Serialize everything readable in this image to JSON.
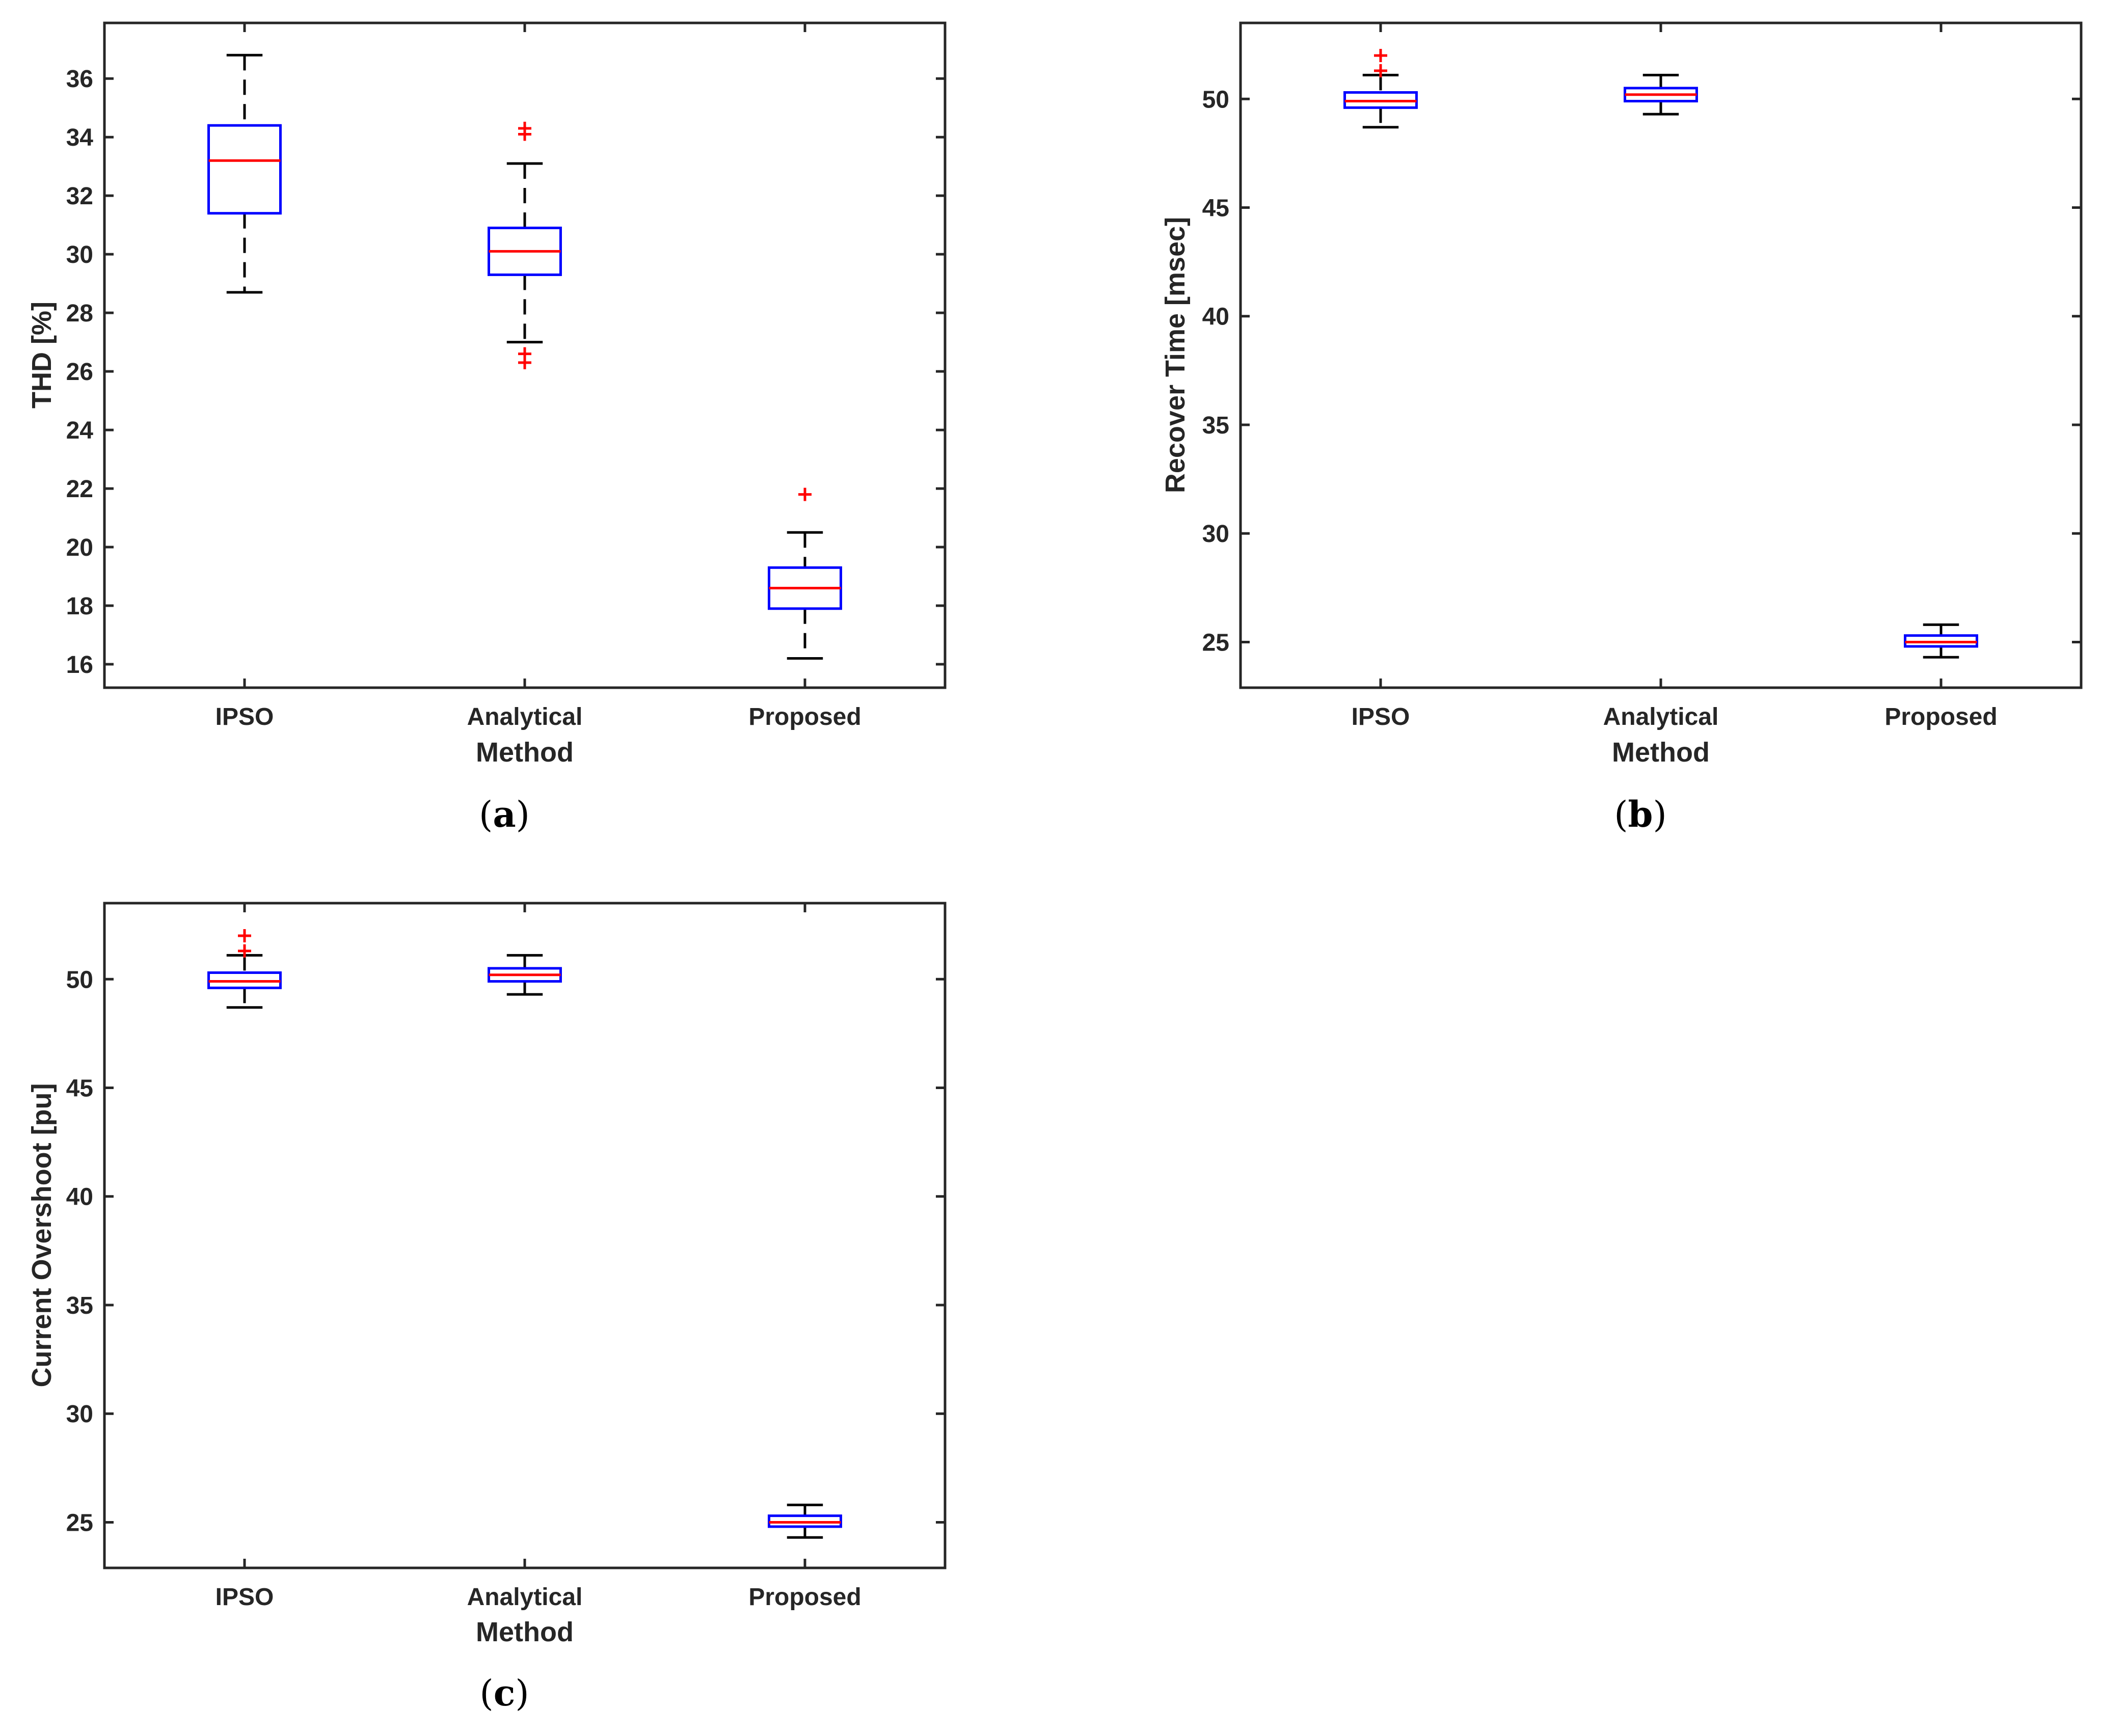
{
  "colors": {
    "box": "#0000ff",
    "median": "#ff0000",
    "whisker": "#000000",
    "outlier": "#ff0000",
    "axis": "#262626"
  },
  "chart_data": [
    {
      "id": "a",
      "type": "boxplot",
      "caption_letter": "a",
      "xlabel": "Method",
      "ylabel": "THD [%]",
      "categories": [
        "IPSO",
        "Analytical",
        "Proposed"
      ],
      "ylim": [
        15.2,
        37.9
      ],
      "yticks": [
        16,
        18,
        20,
        22,
        24,
        26,
        28,
        30,
        32,
        34,
        36
      ],
      "boxes": [
        {
          "category": "IPSO",
          "whisker_low": 28.7,
          "q1": 31.4,
          "median": 33.2,
          "q3": 34.4,
          "whisker_high": 36.8,
          "outliers": []
        },
        {
          "category": "Analytical",
          "whisker_low": 27.0,
          "q1": 29.3,
          "median": 30.1,
          "q3": 30.9,
          "whisker_high": 33.1,
          "outliers": [
            26.3,
            26.6,
            34.1,
            34.3
          ]
        },
        {
          "category": "Proposed",
          "whisker_low": 16.2,
          "q1": 17.9,
          "median": 18.6,
          "q3": 19.3,
          "whisker_high": 20.5,
          "outliers": [
            21.8
          ]
        }
      ]
    },
    {
      "id": "b",
      "type": "boxplot",
      "caption_letter": "b",
      "xlabel": "Method",
      "ylabel": "Recover Time [msec]",
      "categories": [
        "IPSO",
        "Analytical",
        "Proposed"
      ],
      "ylim": [
        22.9,
        53.5
      ],
      "yticks": [
        25,
        30,
        35,
        40,
        45,
        50
      ],
      "boxes": [
        {
          "category": "IPSO",
          "whisker_low": 48.7,
          "q1": 49.6,
          "median": 49.9,
          "q3": 50.3,
          "whisker_high": 51.1,
          "outliers": [
            51.3,
            52.0
          ]
        },
        {
          "category": "Analytical",
          "whisker_low": 49.3,
          "q1": 49.9,
          "median": 50.2,
          "q3": 50.5,
          "whisker_high": 51.1,
          "outliers": []
        },
        {
          "category": "Proposed",
          "whisker_low": 24.3,
          "q1": 24.8,
          "median": 25.0,
          "q3": 25.3,
          "whisker_high": 25.8,
          "outliers": []
        }
      ]
    },
    {
      "id": "c",
      "type": "boxplot",
      "caption_letter": "c",
      "xlabel": "Method",
      "ylabel": "Current Overshoot [pu]",
      "categories": [
        "IPSO",
        "Analytical",
        "Proposed"
      ],
      "ylim": [
        22.9,
        53.5
      ],
      "yticks": [
        25,
        30,
        35,
        40,
        45,
        50
      ],
      "boxes": [
        {
          "category": "IPSO",
          "whisker_low": 48.7,
          "q1": 49.6,
          "median": 49.9,
          "q3": 50.3,
          "whisker_high": 51.1,
          "outliers": [
            51.3,
            52.0
          ]
        },
        {
          "category": "Analytical",
          "whisker_low": 49.3,
          "q1": 49.9,
          "median": 50.2,
          "q3": 50.5,
          "whisker_high": 51.1,
          "outliers": []
        },
        {
          "category": "Proposed",
          "whisker_low": 24.3,
          "q1": 24.8,
          "median": 25.0,
          "q3": 25.3,
          "whisker_high": 25.8,
          "outliers": []
        }
      ]
    }
  ]
}
